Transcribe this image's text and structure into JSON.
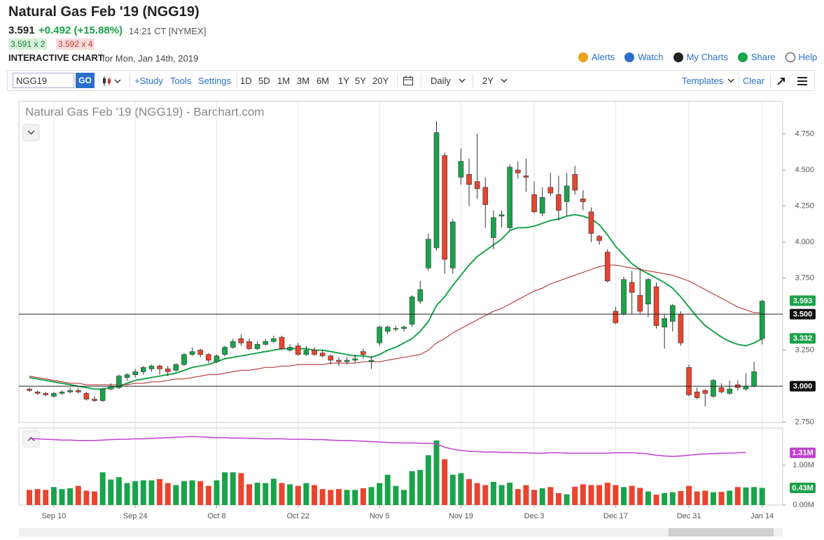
{
  "header": {
    "title": "Natural Gas Feb '19 (NGG19)",
    "last": "3.591",
    "change": "+0.492 (+15.88%)",
    "time": "14:21 CT [NYMEX]",
    "bid": "3.591 x 2",
    "ask": "3.592 x 4",
    "label": "INTERACTIVE CHART",
    "date": "for Mon, Jan 14th, 2019",
    "links": [
      "Alerts",
      "Watch",
      "My Charts",
      "Share",
      "Help"
    ]
  },
  "toolbar": {
    "symbol": "NGG19",
    "go": "GO",
    "study": "+Study",
    "tools": "Tools",
    "settings": "Settings",
    "ranges": [
      "1D",
      "5D",
      "1M",
      "3M",
      "6M",
      "1Y",
      "5Y",
      "20Y"
    ],
    "interval": "Daily",
    "period": "2Y",
    "templates": "Templates",
    "clear": "Clear"
  },
  "chart_data": [
    {
      "type": "candlestick",
      "title": "Natural Gas Feb '19 (NGG19) - Barchart.com",
      "up_color": "#1aa34a",
      "down_color": "#e8442f",
      "open": [
        2.98,
        2.96,
        2.95,
        2.93,
        2.95,
        2.96,
        2.97,
        2.95,
        2.91,
        2.9,
        2.98,
        2.99,
        3.06,
        3.08,
        3.1,
        3.12,
        3.14,
        3.12,
        3.11,
        3.15,
        3.22,
        3.25,
        3.22,
        3.17,
        3.22,
        3.27,
        3.33,
        3.31,
        3.26,
        3.29,
        3.31,
        3.34,
        3.25,
        3.28,
        3.22,
        3.25,
        3.23,
        3.21,
        3.18,
        3.17,
        3.18,
        3.24,
        3.17,
        3.3,
        3.38,
        3.4,
        3.4,
        3.43,
        3.59,
        3.82,
        3.96,
        4.6,
        3.82,
        4.45,
        4.47,
        4.42,
        4.38,
        4.03,
        4.18,
        4.1,
        4.5,
        4.46,
        4.33,
        4.2,
        4.38,
        4.33,
        4.28,
        4.47,
        4.3,
        4.21,
        4.04,
        3.93,
        3.52,
        3.5,
        3.72,
        3.63,
        3.57,
        3.69,
        3.41,
        3.45,
        3.5,
        3.13,
        2.96,
        2.97,
        2.93,
        2.99,
        2.95,
        3.01,
        2.98,
        3.0,
        3.33
      ],
      "high": [
        2.99,
        2.97,
        2.96,
        2.96,
        2.97,
        2.99,
        2.99,
        2.96,
        2.93,
        2.99,
        3.02,
        3.08,
        3.09,
        3.12,
        3.14,
        3.15,
        3.15,
        3.14,
        3.16,
        3.23,
        3.27,
        3.26,
        3.23,
        3.22,
        3.28,
        3.33,
        3.36,
        3.33,
        3.31,
        3.33,
        3.35,
        3.35,
        3.29,
        3.3,
        3.28,
        3.27,
        3.25,
        3.22,
        3.2,
        3.2,
        3.22,
        3.26,
        3.21,
        3.42,
        3.42,
        3.42,
        3.42,
        3.63,
        3.73,
        4.06,
        4.84,
        4.62,
        4.16,
        4.65,
        4.58,
        4.75,
        4.45,
        4.22,
        4.22,
        4.54,
        4.56,
        4.58,
        4.42,
        4.38,
        4.48,
        4.46,
        4.48,
        4.53,
        4.36,
        4.24,
        4.05,
        3.95,
        3.55,
        3.76,
        3.8,
        3.82,
        3.75,
        3.72,
        3.5,
        3.57,
        3.52,
        3.15,
        2.99,
        2.98,
        3.05,
        3.02,
        3.04,
        3.04,
        3.09,
        3.17,
        3.6
      ],
      "low": [
        2.96,
        2.94,
        2.93,
        2.92,
        2.94,
        2.95,
        2.95,
        2.9,
        2.89,
        2.89,
        2.97,
        2.98,
        3.04,
        3.06,
        3.08,
        3.1,
        3.08,
        3.07,
        3.1,
        3.14,
        3.21,
        3.2,
        3.16,
        3.16,
        3.21,
        3.26,
        3.28,
        3.25,
        3.25,
        3.28,
        3.3,
        3.25,
        3.24,
        3.21,
        3.21,
        3.21,
        3.2,
        3.15,
        3.14,
        3.15,
        3.16,
        3.19,
        3.12,
        3.28,
        3.36,
        3.38,
        3.38,
        3.41,
        3.57,
        3.8,
        3.94,
        3.78,
        3.78,
        4.4,
        4.25,
        4.3,
        4.1,
        3.95,
        4.1,
        4.08,
        4.44,
        4.35,
        4.2,
        4.18,
        4.32,
        4.15,
        4.18,
        4.33,
        4.22,
        4.0,
        3.98,
        3.72,
        3.43,
        3.49,
        3.5,
        3.5,
        3.48,
        3.4,
        3.26,
        3.38,
        3.28,
        2.93,
        2.91,
        2.86,
        2.92,
        2.95,
        2.94,
        2.97,
        2.97,
        2.99,
        3.29
      ],
      "close": [
        2.97,
        2.95,
        2.94,
        2.95,
        2.96,
        2.97,
        2.96,
        2.91,
        2.9,
        2.98,
        3.0,
        3.07,
        3.08,
        3.1,
        3.13,
        3.14,
        3.12,
        3.1,
        3.15,
        3.22,
        3.24,
        3.22,
        3.18,
        3.21,
        3.27,
        3.31,
        3.3,
        3.26,
        3.29,
        3.31,
        3.33,
        3.26,
        3.27,
        3.22,
        3.25,
        3.22,
        3.21,
        3.18,
        3.17,
        3.18,
        3.19,
        3.22,
        3.18,
        3.41,
        3.41,
        3.4,
        3.41,
        3.62,
        3.67,
        4.02,
        4.76,
        3.88,
        4.14,
        4.56,
        4.4,
        4.37,
        4.26,
        4.17,
        4.19,
        4.52,
        4.48,
        4.45,
        4.21,
        4.31,
        4.34,
        4.22,
        4.39,
        4.36,
        4.28,
        4.06,
        4.01,
        3.73,
        3.44,
        3.74,
        3.65,
        3.52,
        3.74,
        3.42,
        3.47,
        3.56,
        3.3,
        2.94,
        2.92,
        2.95,
        3.04,
        2.96,
        2.98,
        2.99,
        3.0,
        3.1,
        3.59
      ],
      "series": [
        {
          "color": "#1aa34a",
          "width": 2,
          "values": [
            3.06,
            3.05,
            3.04,
            3.03,
            3.02,
            3.01,
            3.0,
            2.99,
            2.98,
            2.98,
            2.99,
            3.0,
            3.02,
            3.04,
            3.05,
            3.06,
            3.07,
            3.08,
            3.09,
            3.11,
            3.13,
            3.14,
            3.15,
            3.17,
            3.19,
            3.2,
            3.21,
            3.22,
            3.23,
            3.24,
            3.25,
            3.26,
            3.26,
            3.26,
            3.26,
            3.25,
            3.25,
            3.24,
            3.23,
            3.22,
            3.21,
            3.21,
            3.2,
            3.22,
            3.25,
            3.27,
            3.3,
            3.33,
            3.38,
            3.45,
            3.56,
            3.62,
            3.7,
            3.77,
            3.84,
            3.9,
            3.94,
            3.98,
            4.02,
            4.08,
            4.1,
            4.1,
            4.11,
            4.13,
            4.15,
            4.16,
            4.18,
            4.19,
            4.18,
            4.16,
            4.12,
            4.05,
            3.97,
            3.91,
            3.85,
            3.81,
            3.78,
            3.75,
            3.72,
            3.68,
            3.62,
            3.55,
            3.48,
            3.42,
            3.38,
            3.34,
            3.31,
            3.29,
            3.28,
            3.3,
            3.33
          ]
        },
        {
          "color": "#b22222",
          "width": 1,
          "values": [
            3.07,
            3.06,
            3.05,
            3.04,
            3.03,
            3.02,
            3.02,
            3.01,
            3.01,
            3.01,
            3.01,
            3.01,
            3.01,
            3.02,
            3.02,
            3.03,
            3.03,
            3.04,
            3.05,
            3.05,
            3.06,
            3.07,
            3.08,
            3.08,
            3.09,
            3.1,
            3.11,
            3.11,
            3.12,
            3.13,
            3.13,
            3.14,
            3.14,
            3.15,
            3.15,
            3.15,
            3.15,
            3.16,
            3.16,
            3.16,
            3.16,
            3.17,
            3.17,
            3.17,
            3.18,
            3.19,
            3.2,
            3.21,
            3.22,
            3.25,
            3.3,
            3.33,
            3.37,
            3.4,
            3.43,
            3.46,
            3.49,
            3.52,
            3.54,
            3.57,
            3.6,
            3.63,
            3.66,
            3.68,
            3.71,
            3.73,
            3.75,
            3.77,
            3.79,
            3.81,
            3.83,
            3.84,
            3.84,
            3.83,
            3.82,
            3.81,
            3.8,
            3.79,
            3.78,
            3.77,
            3.75,
            3.73,
            3.7,
            3.67,
            3.64,
            3.61,
            3.58,
            3.55,
            3.53,
            3.51,
            3.51
          ]
        }
      ],
      "ylim": [
        2.748,
        4.976
      ],
      "yticks": [
        {
          "value": 4.75,
          "label": "4.750"
        },
        {
          "value": 4.5,
          "label": "4.500"
        },
        {
          "value": 4.25,
          "label": "4.250"
        },
        {
          "value": 4.0,
          "label": "4.000"
        },
        {
          "value": 3.75,
          "label": "3.750"
        },
        {
          "value": 3.25,
          "label": "3.250"
        },
        {
          "value": 2.75,
          "label": "2.750"
        }
      ],
      "price_labels": [
        {
          "value": 3.593,
          "label": "3.593",
          "color": "#1aa34a"
        },
        {
          "value": 3.5,
          "label": "3.500",
          "color": "#111111",
          "line": true
        },
        {
          "value": 3.332,
          "label": "3.332",
          "color": "#1aa34a"
        },
        {
          "value": 3.0,
          "label": "3.000",
          "color": "#111111",
          "line": true
        }
      ]
    },
    {
      "type": "bar",
      "up_color": "#1aa34a",
      "down_color": "#e8442f",
      "categories": [
        null,
        null,
        null,
        "Sep 10",
        null,
        null,
        null,
        null,
        null,
        null,
        null,
        null,
        null,
        "Sep 24",
        null,
        null,
        null,
        null,
        null,
        null,
        null,
        null,
        null,
        "Oct 8",
        null,
        null,
        null,
        null,
        null,
        null,
        null,
        null,
        null,
        "Oct 22",
        null,
        null,
        null,
        null,
        null,
        null,
        null,
        null,
        null,
        "Nov 5",
        null,
        null,
        null,
        null,
        null,
        null,
        null,
        null,
        null,
        "Nov 19",
        null,
        null,
        null,
        null,
        null,
        null,
        null,
        null,
        "Dec 3",
        null,
        null,
        null,
        null,
        null,
        null,
        null,
        null,
        null,
        "Dec 17",
        null,
        null,
        null,
        null,
        null,
        null,
        null,
        null,
        "Dec 31",
        null,
        null,
        null,
        null,
        null,
        null,
        null,
        null,
        "Jan 14"
      ],
      "values": [
        0.38,
        0.4,
        0.38,
        0.45,
        0.4,
        0.42,
        0.48,
        0.36,
        0.34,
        0.82,
        0.64,
        0.7,
        0.55,
        0.6,
        0.62,
        0.62,
        0.65,
        0.55,
        0.5,
        0.6,
        0.62,
        0.6,
        0.48,
        0.62,
        0.82,
        0.82,
        0.8,
        0.52,
        0.56,
        0.55,
        0.66,
        0.55,
        0.52,
        0.48,
        0.55,
        0.5,
        0.4,
        0.38,
        0.4,
        0.38,
        0.38,
        0.42,
        0.45,
        0.55,
        0.76,
        0.48,
        0.38,
        0.85,
        0.88,
        1.25,
        1.62,
        1.15,
        0.76,
        0.8,
        0.65,
        0.55,
        0.5,
        0.58,
        0.5,
        0.56,
        0.4,
        0.5,
        0.38,
        0.42,
        0.45,
        0.3,
        0.27,
        0.46,
        0.52,
        0.5,
        0.5,
        0.56,
        0.5,
        0.45,
        0.48,
        0.43,
        0.34,
        0.26,
        0.3,
        0.32,
        0.35,
        0.48,
        0.34,
        0.36,
        0.32,
        0.33,
        0.36,
        0.45,
        0.44,
        0.45,
        0.43
      ],
      "series": [
        {
          "color": "#c040d0",
          "width": 1.5,
          "values": [
            1.67,
            1.66,
            1.65,
            1.64,
            1.63,
            1.63,
            1.62,
            1.62,
            1.62,
            1.63,
            1.64,
            1.65,
            1.65,
            1.66,
            1.66,
            1.67,
            1.68,
            1.69,
            1.7,
            1.71,
            1.72,
            1.71,
            1.7,
            1.69,
            1.69,
            1.68,
            1.68,
            1.67,
            1.67,
            1.66,
            1.66,
            1.66,
            1.65,
            1.65,
            1.65,
            1.64,
            1.64,
            1.63,
            1.62,
            1.62,
            1.61,
            1.6,
            1.59,
            1.58,
            1.57,
            1.56,
            1.56,
            1.56,
            1.55,
            1.55,
            1.53,
            1.45,
            1.4,
            1.37,
            1.35,
            1.34,
            1.33,
            1.33,
            1.32,
            1.32,
            1.31,
            1.31,
            1.3,
            1.3,
            1.31,
            1.31,
            1.3,
            1.3,
            1.3,
            1.3,
            1.3,
            1.3,
            1.31,
            1.31,
            1.31,
            1.3,
            1.28,
            1.25,
            1.23,
            1.22,
            1.23,
            1.25,
            1.27,
            1.28,
            1.29,
            1.3,
            1.3,
            1.31,
            1.32,
            null,
            null
          ]
        }
      ],
      "ylim": [
        0,
        1.93
      ],
      "yticks": [
        {
          "value": 1,
          "label": "1.00M"
        },
        {
          "value": 0,
          "label": "0.00M"
        }
      ],
      "price_labels": [
        {
          "value": 1.31,
          "label": "1.31M",
          "color": "#c040d0"
        },
        {
          "value": 0.43,
          "label": "0.43M",
          "color": "#1aa34a"
        }
      ]
    }
  ]
}
